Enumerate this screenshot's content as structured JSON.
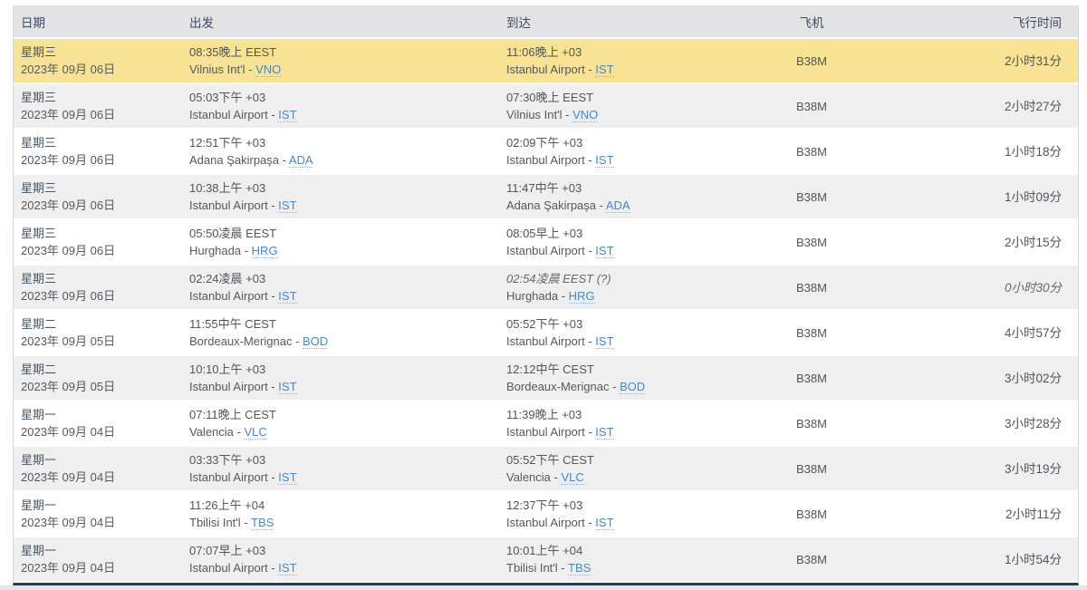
{
  "table": {
    "columns": [
      {
        "key": "date",
        "label": "日期"
      },
      {
        "key": "departure",
        "label": "出发"
      },
      {
        "key": "arrival",
        "label": "到达"
      },
      {
        "key": "aircraft",
        "label": "飞机"
      },
      {
        "key": "duration",
        "label": "飞行时间"
      }
    ]
  },
  "colors": {
    "row_highlight": "#f8e394",
    "row_shade": "#efeff0",
    "header_bg": "#e3e3e5",
    "header_text": "#3d4c66",
    "link_blue": "#4a86c5",
    "bottom_bar": "#1c3e63"
  },
  "flights": [
    {
      "weekday": "星期三",
      "date": "2023年 09月 06日",
      "dep_time": "08:35晚上 EEST",
      "dep_airport": "Vilnius Int'l",
      "dep_code": "VNO",
      "arr_time": "11:06晚上 +03",
      "arr_airport": "Istanbul Airport",
      "arr_code": "IST",
      "aircraft": "B38M",
      "duration": "2小时31分",
      "highlighted": true,
      "estimated": false
    },
    {
      "weekday": "星期三",
      "date": "2023年 09月 06日",
      "dep_time": "05:03下午 +03",
      "dep_airport": "Istanbul Airport",
      "dep_code": "IST",
      "arr_time": "07:30晚上 EEST",
      "arr_airport": "Vilnius Int'l",
      "arr_code": "VNO",
      "aircraft": "B38M",
      "duration": "2小时27分",
      "highlighted": false,
      "estimated": false
    },
    {
      "weekday": "星期三",
      "date": "2023年 09月 06日",
      "dep_time": "12:51下午 +03",
      "dep_airport": "Adana Şakirpaşa",
      "dep_code": "ADA",
      "arr_time": "02:09下午 +03",
      "arr_airport": "Istanbul Airport",
      "arr_code": "IST",
      "aircraft": "B38M",
      "duration": "1小时18分",
      "highlighted": false,
      "estimated": false
    },
    {
      "weekday": "星期三",
      "date": "2023年 09月 06日",
      "dep_time": "10:38上午 +03",
      "dep_airport": "Istanbul Airport",
      "dep_code": "IST",
      "arr_time": "11:47中午 +03",
      "arr_airport": "Adana Şakirpaşa",
      "arr_code": "ADA",
      "aircraft": "B38M",
      "duration": "1小时09分",
      "highlighted": false,
      "estimated": false
    },
    {
      "weekday": "星期三",
      "date": "2023年 09月 06日",
      "dep_time": "05:50凌晨 EEST",
      "dep_airport": "Hurghada",
      "dep_code": "HRG",
      "arr_time": "08:05早上 +03",
      "arr_airport": "Istanbul Airport",
      "arr_code": "IST",
      "aircraft": "B38M",
      "duration": "2小时15分",
      "highlighted": false,
      "estimated": false
    },
    {
      "weekday": "星期三",
      "date": "2023年 09月 06日",
      "dep_time": "02:24凌晨 +03",
      "dep_airport": "Istanbul Airport",
      "dep_code": "IST",
      "arr_time": "02:54凌晨 EEST (?)",
      "arr_airport": "Hurghada",
      "arr_code": "HRG",
      "aircraft": "B38M",
      "duration": "0小时30分",
      "highlighted": false,
      "estimated": true
    },
    {
      "weekday": "星期二",
      "date": "2023年 09月 05日",
      "dep_time": "11:55中午 CEST",
      "dep_airport": "Bordeaux-Merignac",
      "dep_code": "BOD",
      "arr_time": "05:52下午 +03",
      "arr_airport": "Istanbul Airport",
      "arr_code": "IST",
      "aircraft": "B38M",
      "duration": "4小时57分",
      "highlighted": false,
      "estimated": false
    },
    {
      "weekday": "星期二",
      "date": "2023年 09月 05日",
      "dep_time": "10:10上午 +03",
      "dep_airport": "Istanbul Airport",
      "dep_code": "IST",
      "arr_time": "12:12中午 CEST",
      "arr_airport": "Bordeaux-Merignac",
      "arr_code": "BOD",
      "aircraft": "B38M",
      "duration": "3小时02分",
      "highlighted": false,
      "estimated": false
    },
    {
      "weekday": "星期一",
      "date": "2023年 09月 04日",
      "dep_time": "07:11晚上 CEST",
      "dep_airport": "Valencia",
      "dep_code": "VLC",
      "arr_time": "11:39晚上 +03",
      "arr_airport": "Istanbul Airport",
      "arr_code": "IST",
      "aircraft": "B38M",
      "duration": "3小时28分",
      "highlighted": false,
      "estimated": false
    },
    {
      "weekday": "星期一",
      "date": "2023年 09月 04日",
      "dep_time": "03:33下午 +03",
      "dep_airport": "Istanbul Airport",
      "dep_code": "IST",
      "arr_time": "05:52下午 CEST",
      "arr_airport": "Valencia",
      "arr_code": "VLC",
      "aircraft": "B38M",
      "duration": "3小时19分",
      "highlighted": false,
      "estimated": false
    },
    {
      "weekday": "星期一",
      "date": "2023年 09月 04日",
      "dep_time": "11:26上午 +04",
      "dep_airport": "Tbilisi Int'l",
      "dep_code": "TBS",
      "arr_time": "12:37下午 +03",
      "arr_airport": "Istanbul Airport",
      "arr_code": "IST",
      "aircraft": "B38M",
      "duration": "2小时11分",
      "highlighted": false,
      "estimated": false
    },
    {
      "weekday": "星期一",
      "date": "2023年 09月 04日",
      "dep_time": "07:07早上 +03",
      "dep_airport": "Istanbul Airport",
      "dep_code": "IST",
      "arr_time": "10:01上午 +04",
      "arr_airport": "Tbilisi Int'l",
      "arr_code": "TBS",
      "aircraft": "B38M",
      "duration": "1小时54分",
      "highlighted": false,
      "estimated": false
    }
  ]
}
